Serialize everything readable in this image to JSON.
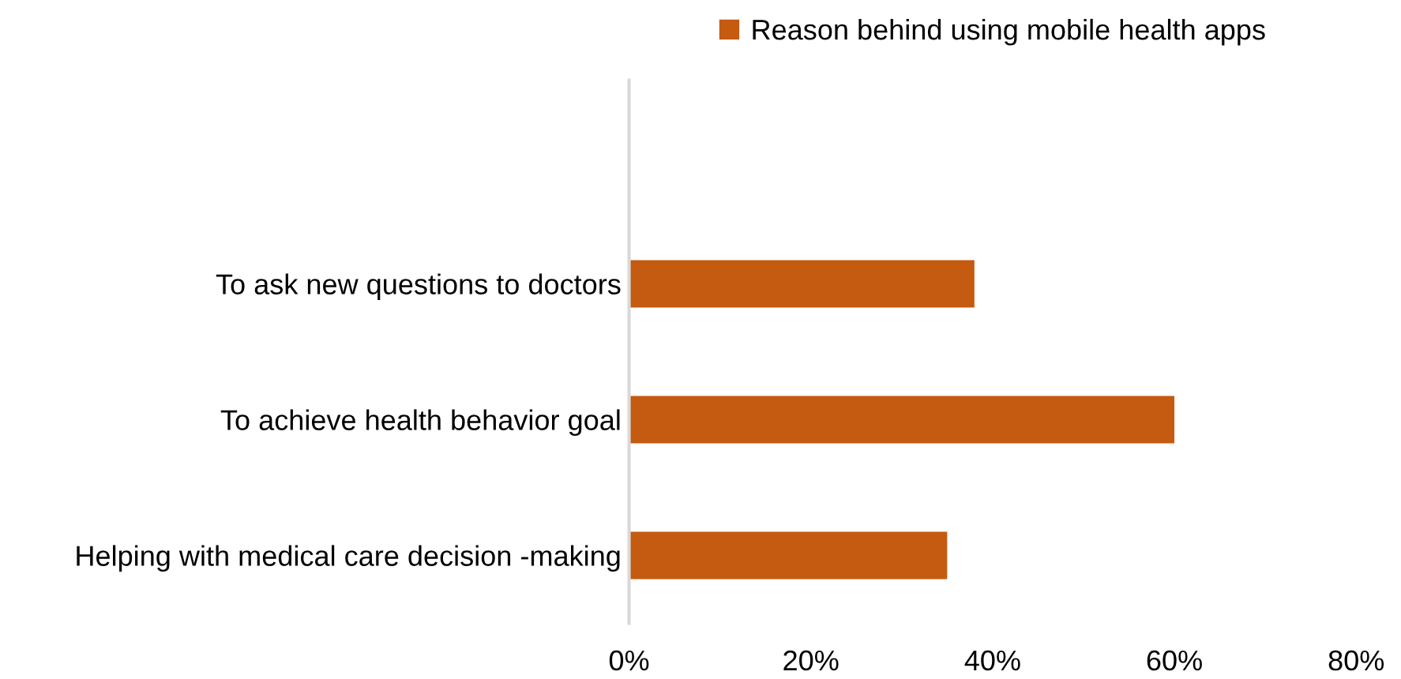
{
  "chart_data": {
    "type": "bar",
    "orientation": "horizontal",
    "categories": [
      null,
      "To ask new questions to doctors",
      "To achieve health behavior goal",
      "Helping with medical care decision -making"
    ],
    "series": [
      {
        "name": "Reason behind using mobile health apps",
        "color": "#c55a11",
        "values": [
          null,
          38,
          60,
          35
        ]
      }
    ],
    "xlim": [
      0,
      80
    ],
    "xticks": [
      {
        "value": 0,
        "label": "0%"
      },
      {
        "value": 20,
        "label": "20%"
      },
      {
        "value": 40,
        "label": "40%"
      },
      {
        "value": 60,
        "label": "60%"
      },
      {
        "value": 80,
        "label": "80%"
      }
    ],
    "grid": false,
    "legend": "top"
  }
}
